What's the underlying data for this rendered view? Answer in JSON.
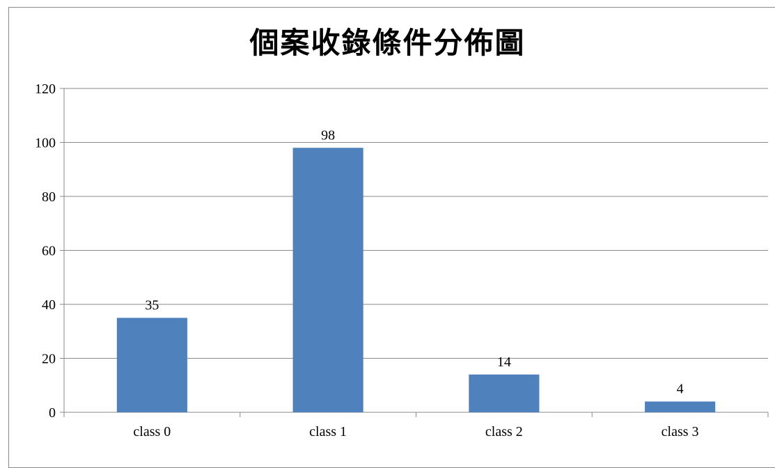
{
  "chart_data": {
    "type": "bar",
    "title": "個案收錄條件分佈圖",
    "categories": [
      "class 0",
      "class 1",
      "class 2",
      "class 3"
    ],
    "values": [
      35,
      98,
      14,
      4
    ],
    "data_labels": [
      "35",
      "98",
      "14",
      "4"
    ],
    "xlabel": "",
    "ylabel": "",
    "ylim": [
      0,
      120
    ],
    "yticks": [
      0,
      20,
      40,
      60,
      80,
      100,
      120
    ],
    "ytick_labels": [
      "0",
      "20",
      "40",
      "60",
      "80",
      "100",
      "120"
    ],
    "grid": true,
    "legend": "none",
    "bar_color": "#4f81bd",
    "grid_color": "#8a8a8a"
  }
}
